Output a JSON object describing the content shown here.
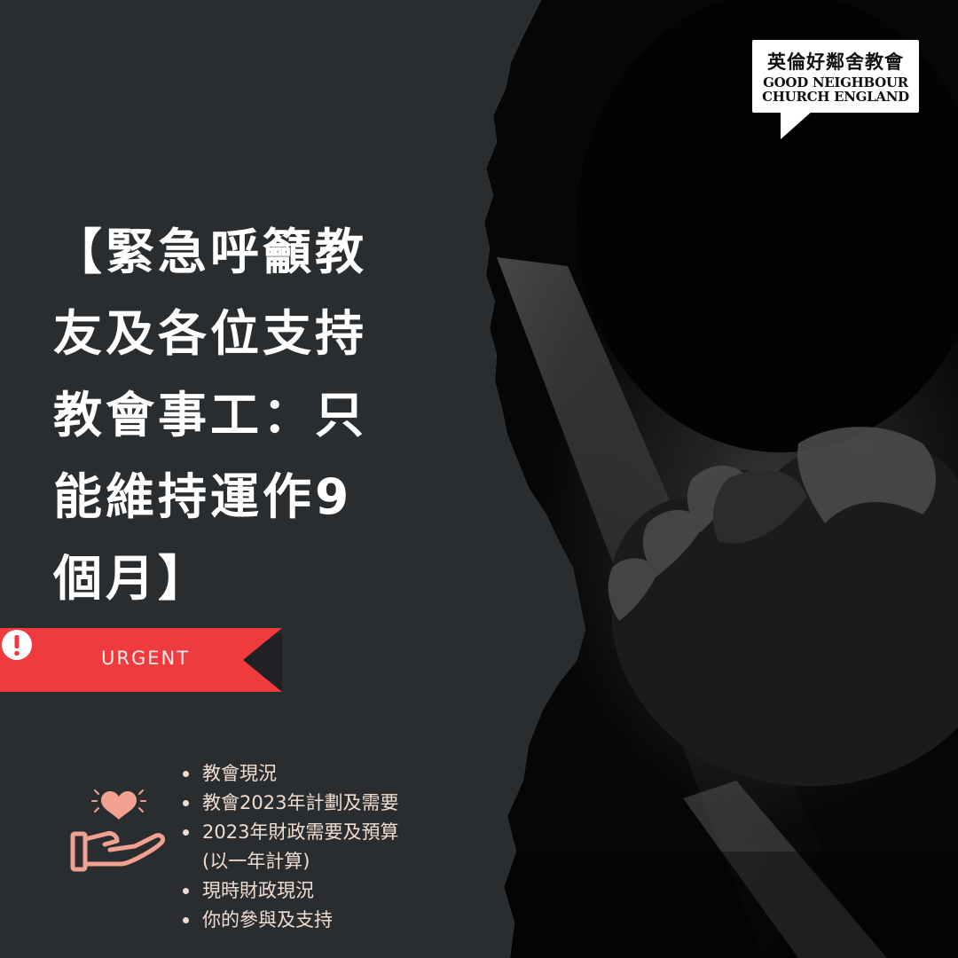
{
  "title": [
    "【緊急呼籲教",
    "友及各位支持",
    "教會事工：只",
    "能維持運作9",
    "個月】"
  ],
  "urgent_badge": {
    "label": "URGENT",
    "icon": "exclamation-circle-icon",
    "color": "#ef3b3e"
  },
  "topics_icon": "hand-heart-icon",
  "topics": [
    [
      "教會現況"
    ],
    [
      "教會2023年計劃及需要"
    ],
    [
      "2023年財政需要及預算",
      "(以一年計算)"
    ],
    [
      "現時財政現況"
    ],
    [
      "你的參與及支持"
    ]
  ],
  "logo": {
    "name_zh": "英倫好鄰舍教會",
    "name_en_line1": "GOOD NEIGHBOUR",
    "name_en_line2": "CHURCH ENGLAND"
  },
  "colors": {
    "background": "#2a2d30",
    "accent_red": "#ef3b3e",
    "icon_salmon": "#f2a08f",
    "text_light": "#f1dcd0"
  }
}
